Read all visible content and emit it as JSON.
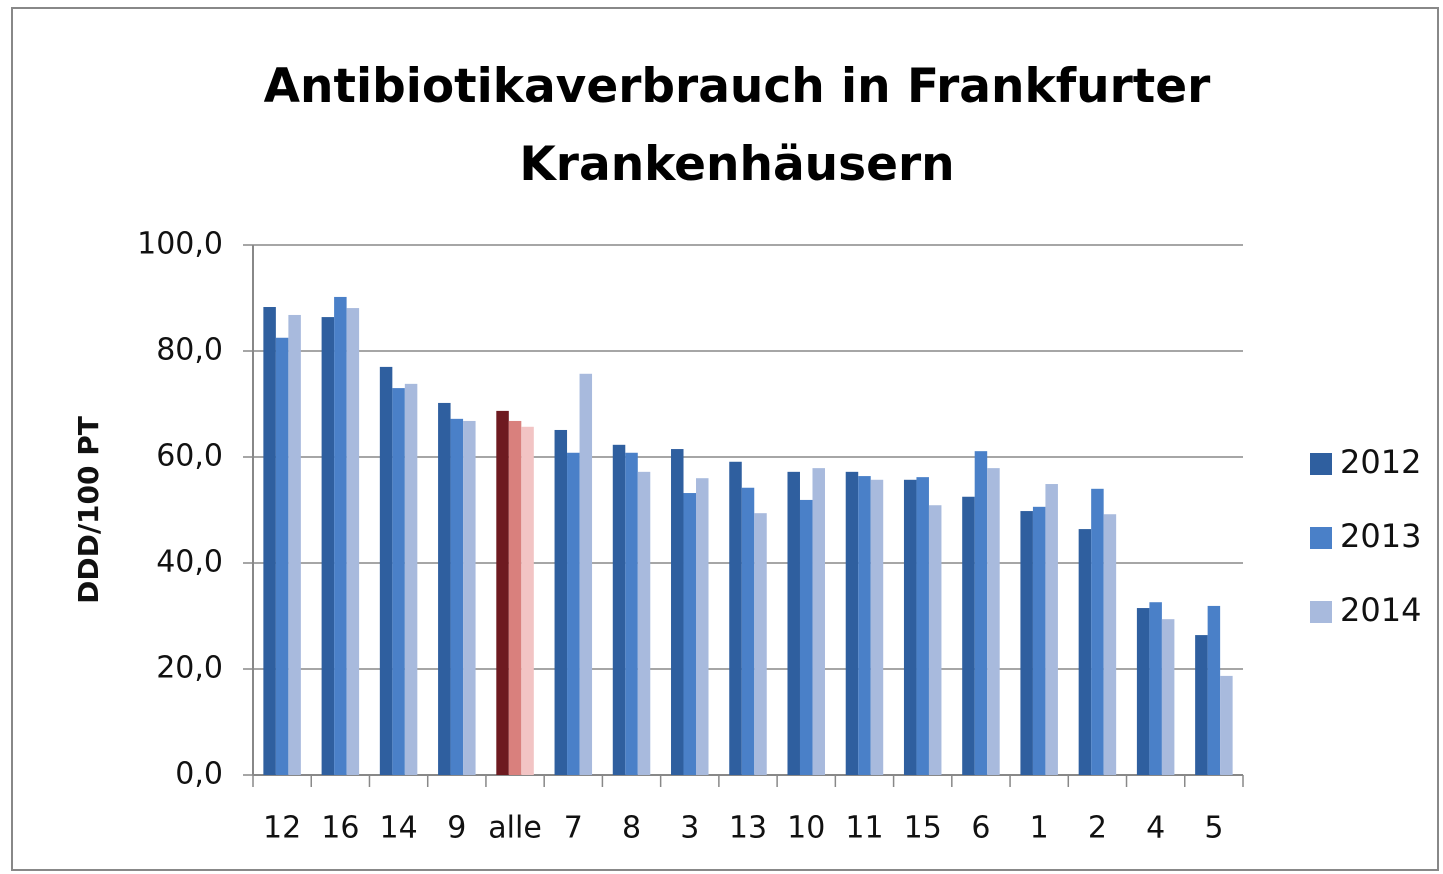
{
  "chart_data": {
    "type": "bar",
    "title": "Antibiotikaverbrauch in Frankfurter Krankenhäusern",
    "y_label": "DDD/100 PT",
    "categories": [
      "12",
      "16",
      "14",
      "9",
      "alle",
      "7",
      "8",
      "3",
      "13",
      "10",
      "11",
      "15",
      "6",
      "1",
      "2",
      "4",
      "5"
    ],
    "highlight_category": "alle",
    "series": [
      {
        "name": "2012",
        "color": "#2f5f9f",
        "highlight_color": "#6e1a20",
        "values": [
          88.3,
          86.4,
          77.0,
          70.2,
          68.7,
          65.1,
          62.3,
          61.5,
          59.1,
          57.2,
          57.2,
          55.7,
          52.5,
          49.8,
          46.4,
          31.5,
          26.4
        ]
      },
      {
        "name": "2013",
        "color": "#4a80c8",
        "highlight_color": "#d9807d",
        "values": [
          82.5,
          90.2,
          73.0,
          67.2,
          66.8,
          60.8,
          60.8,
          53.2,
          54.2,
          51.9,
          56.4,
          56.2,
          61.1,
          50.6,
          54.0,
          32.6,
          31.9
        ]
      },
      {
        "name": "2014",
        "color": "#a8badd",
        "highlight_color": "#f2c4c4",
        "values": [
          86.8,
          88.1,
          73.8,
          66.8,
          65.7,
          75.7,
          57.2,
          56.0,
          49.4,
          57.9,
          55.7,
          50.9,
          57.9,
          54.9,
          49.2,
          29.4,
          18.7
        ]
      }
    ],
    "ylim": [
      0,
      100
    ],
    "yticks": [
      {
        "value": 0,
        "label": "0,0"
      },
      {
        "value": 20,
        "label": "20,0"
      },
      {
        "value": 40,
        "label": "40,0"
      },
      {
        "value": 60,
        "label": "60,0"
      },
      {
        "value": 80,
        "label": "80,0"
      },
      {
        "value": 100,
        "label": "100,0"
      }
    ],
    "grid": true,
    "legend": "right"
  }
}
